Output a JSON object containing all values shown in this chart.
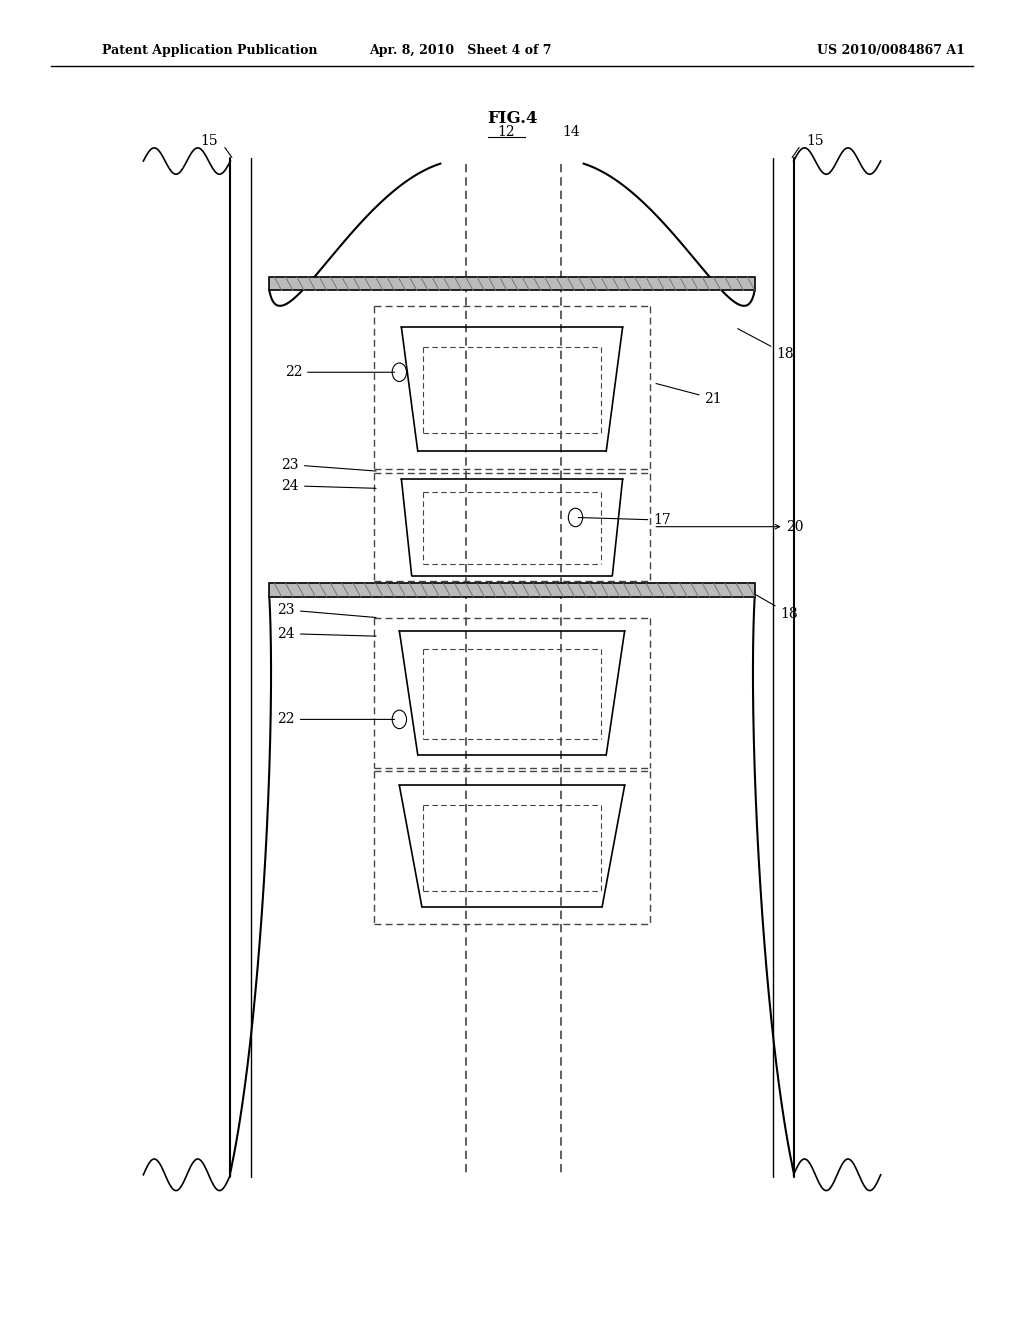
{
  "title": "FIG.4",
  "header_left": "Patent Application Publication",
  "header_mid": "Apr. 8, 2010   Sheet 4 of 7",
  "header_right": "US 2010/0084867 A1",
  "bg_color": "#ffffff",
  "line_color": "#000000",
  "dashed_color": "#555555"
}
